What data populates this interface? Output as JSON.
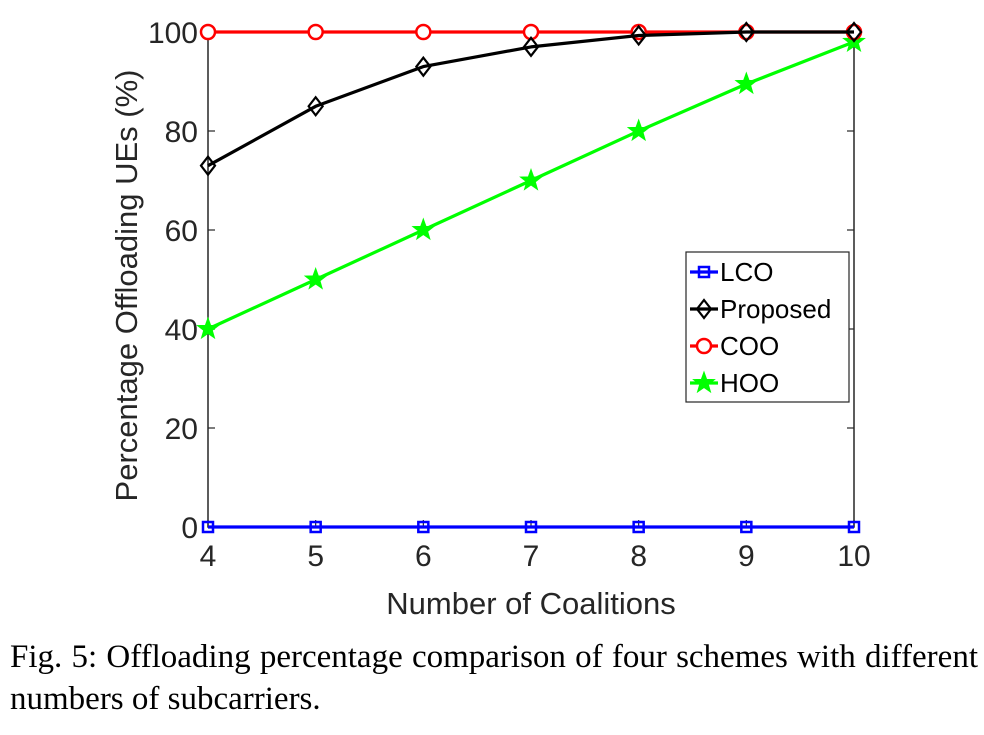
{
  "chart_data": {
    "type": "line",
    "x": [
      4,
      5,
      6,
      7,
      8,
      9,
      10
    ],
    "xlabel": "Number of Coalitions",
    "ylabel": "Percentage Offloading UEs (%)",
    "xlim": [
      4,
      10
    ],
    "ylim": [
      0,
      100
    ],
    "xticks": [
      "4",
      "5",
      "6",
      "7",
      "8",
      "9",
      "10"
    ],
    "yticks": [
      "0",
      "20",
      "40",
      "60",
      "80",
      "100"
    ],
    "grid": false,
    "legend_position": "center-right",
    "series": [
      {
        "name": "LCO",
        "color": "#0000ff",
        "marker": "square",
        "values": [
          0,
          0,
          0,
          0,
          0,
          0,
          0
        ]
      },
      {
        "name": "Proposed",
        "color": "#000000",
        "marker": "diamond",
        "values": [
          73,
          85,
          93,
          97,
          99.3,
          100,
          100
        ]
      },
      {
        "name": "COO",
        "color": "#ff0000",
        "marker": "circle",
        "values": [
          100,
          100,
          100,
          100,
          100,
          100,
          100
        ]
      },
      {
        "name": "HOO",
        "color": "#00ff00",
        "marker": "star",
        "values": [
          40,
          50,
          60,
          70,
          80,
          89.5,
          98
        ]
      }
    ]
  },
  "caption": "Fig. 5: Offloading percentage comparison of four schemes with different numbers of subcarriers."
}
